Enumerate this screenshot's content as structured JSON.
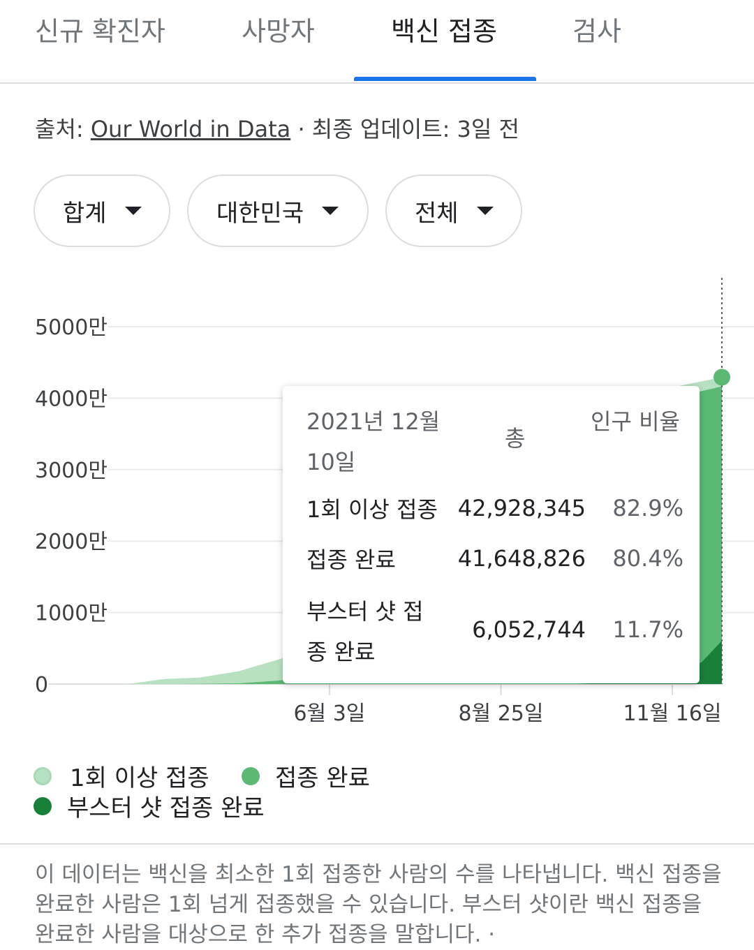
{
  "tabs": [
    {
      "label": "신규 확진자",
      "active": false
    },
    {
      "label": "사망자",
      "active": false
    },
    {
      "label": "백신 접종",
      "active": true
    },
    {
      "label": "검사",
      "active": false
    }
  ],
  "source": {
    "prefix": "출처: ",
    "link_text": "Our World in Data",
    "suffix": " · 최종 업데이트: 3일 전"
  },
  "filters": [
    {
      "label": "합계"
    },
    {
      "label": "대한민국"
    },
    {
      "label": "전체"
    }
  ],
  "tooltip": {
    "date": "2021년 12월 10일",
    "col_total": "총",
    "col_pct": "인구 비율",
    "rows": [
      {
        "name": "1회 이상 접종",
        "value": "42,928,345",
        "pct": "82.9%"
      },
      {
        "name": "접종 완료",
        "value": "41,648,826",
        "pct": "80.4%"
      },
      {
        "name": "부스터 샷 접종 완료",
        "value": "6,052,744",
        "pct": "11.7%"
      }
    ]
  },
  "legend": [
    {
      "label": "1회 이상 접종"
    },
    {
      "label": "접종 완료"
    },
    {
      "label": "부스터 샷 접종 완료"
    }
  ],
  "colors": {
    "first_dose": "#b7e1c1",
    "fully_vaccinated": "#5bb974",
    "booster": "#188038",
    "grid": "#e8eaed",
    "active_tab": "#1a73e8"
  },
  "footnote": "이 데이터는 백신을 최소한 1회 접종한 사람의 수를 나타냅니다. 백신 접종을 완료한 사람은 1회 넘게 접종했을 수 있습니다. 부스터 샷이란 백신 접종을 완료한 사람을 대상으로 한 추가 접종을 말합니다.  ·",
  "chart_data": {
    "type": "area",
    "y_unit": "만",
    "ylim": [
      0,
      50000000
    ],
    "y_ticks": [
      {
        "value": 0,
        "label": "0"
      },
      {
        "value": 10000000,
        "label": "1000만"
      },
      {
        "value": 20000000,
        "label": "2000만"
      },
      {
        "value": 30000000,
        "label": "3000만"
      },
      {
        "value": 40000000,
        "label": "4000만"
      },
      {
        "value": 50000000,
        "label": "5000만"
      }
    ],
    "x_range": [
      "2021-02-26",
      "2021-12-10"
    ],
    "x_ticks": [
      {
        "date": "2021-06-03",
        "label": "6월 3일"
      },
      {
        "date": "2021-08-25",
        "label": "8월 25일"
      },
      {
        "date": "2021-11-16",
        "label": "11월 16일"
      }
    ],
    "grid": true,
    "selected_date": "2021-12-10",
    "series": [
      {
        "name": "1회 이상 접종",
        "points": [
          [
            "2021-02-26",
            20000
          ],
          [
            "2021-03-15",
            700000
          ],
          [
            "2021-04-01",
            900000
          ],
          [
            "2021-04-20",
            1800000
          ],
          [
            "2021-05-10",
            3500000
          ],
          [
            "2021-05-25",
            5200000
          ],
          [
            "2021-06-03",
            7000000
          ],
          [
            "2021-06-10",
            13000000
          ],
          [
            "2021-06-20",
            15000000
          ],
          [
            "2021-07-15",
            16500000
          ],
          [
            "2021-08-01",
            20000000
          ],
          [
            "2021-08-25",
            27000000
          ],
          [
            "2021-09-15",
            35000000
          ],
          [
            "2021-10-05",
            39000000
          ],
          [
            "2021-10-25",
            40500000
          ],
          [
            "2021-11-16",
            41500000
          ],
          [
            "2021-12-10",
            42928345
          ]
        ]
      },
      {
        "name": "접종 완료",
        "points": [
          [
            "2021-02-26",
            0
          ],
          [
            "2021-03-20",
            0
          ],
          [
            "2021-04-20",
            100000
          ],
          [
            "2021-05-10",
            500000
          ],
          [
            "2021-06-03",
            2000000
          ],
          [
            "2021-06-20",
            4000000
          ],
          [
            "2021-07-15",
            6000000
          ],
          [
            "2021-08-25",
            12000000
          ],
          [
            "2021-09-15",
            20000000
          ],
          [
            "2021-10-05",
            27000000
          ],
          [
            "2021-10-25",
            34000000
          ],
          [
            "2021-11-16",
            40000000
          ],
          [
            "2021-12-10",
            41648826
          ]
        ]
      },
      {
        "name": "부스터 샷 접종 완료",
        "points": [
          [
            "2021-02-26",
            0
          ],
          [
            "2021-10-01",
            0
          ],
          [
            "2021-10-20",
            300000
          ],
          [
            "2021-11-16",
            1800000
          ],
          [
            "2021-11-30",
            3000000
          ],
          [
            "2021-12-10",
            6052744
          ]
        ]
      }
    ]
  }
}
